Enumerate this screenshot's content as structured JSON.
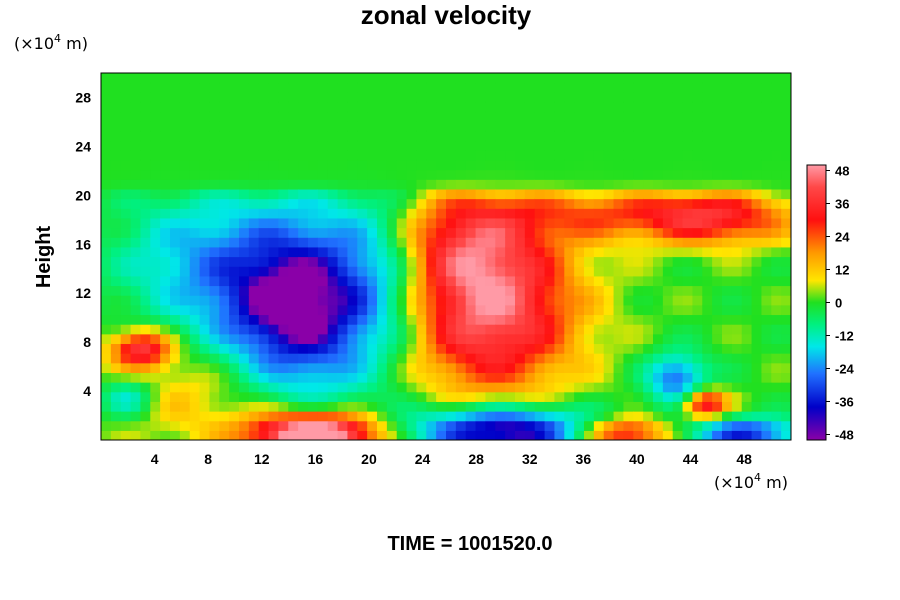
{
  "chart_data": {
    "type": "heatmap",
    "title": "zonal velocity",
    "ylabel": "Height",
    "x_unit": {
      "prefix": "(×10",
      "exp": "4",
      "suffix": " m)"
    },
    "y_unit": {
      "prefix": "(×10",
      "exp": "4",
      "suffix": " m)"
    },
    "xlim": [
      0,
      51.5
    ],
    "ylim": [
      0,
      30
    ],
    "x_ticks": [
      4,
      8,
      12,
      16,
      20,
      24,
      28,
      32,
      36,
      40,
      44,
      48
    ],
    "x_tick_labels": [
      "4",
      "8",
      "12",
      "16",
      "20",
      "24",
      "28",
      "32",
      "36",
      "40",
      "44",
      "48"
    ],
    "y_ticks": [
      4,
      8,
      12,
      16,
      20,
      24,
      28
    ],
    "y_tick_labels": [
      "4",
      "8",
      "12",
      "16",
      "20",
      "24",
      "28"
    ],
    "grid": false,
    "colorbar": {
      "placement": "right",
      "range": [
        -50,
        50
      ],
      "ticks": [
        48,
        36,
        24,
        12,
        0,
        -12,
        -24,
        -36,
        -48
      ],
      "tick_labels": [
        "48",
        "36",
        "24",
        "12",
        "0",
        "-12",
        "-24",
        "-36",
        "-48"
      ],
      "colormap": "rainbow: purple (min) to blue, cyan, green (0), yellow, orange, red, pink (max)"
    },
    "features": [
      {
        "x": 14.5,
        "y": 11,
        "value": -50,
        "description": "strong westward core"
      },
      {
        "x": 29,
        "y": 10.5,
        "value": 40,
        "description": "strong eastward core"
      },
      {
        "x": 46,
        "y": 18.5,
        "value": 28,
        "description": "eastward jet near top of domain"
      },
      {
        "x": 16,
        "y": 0.5,
        "value": 50,
        "description": "near-surface eastward maximum"
      },
      {
        "x": 30,
        "y": 0.8,
        "value": -45,
        "description": "near-surface westward maximum"
      },
      {
        "x": 45,
        "y": 3,
        "value": 38,
        "description": "small eastward eddy"
      },
      {
        "x": 3,
        "y": 7.5,
        "value": 35,
        "description": "small eastward eddy"
      },
      {
        "x": 43,
        "y": 5,
        "value": -32,
        "description": "small westward eddy"
      },
      {
        "x": 25,
        "y": 25,
        "value": 0,
        "description": "near-zero flow aloft (above ~20)"
      }
    ]
  },
  "time_label": "TIME = 1001520.0"
}
